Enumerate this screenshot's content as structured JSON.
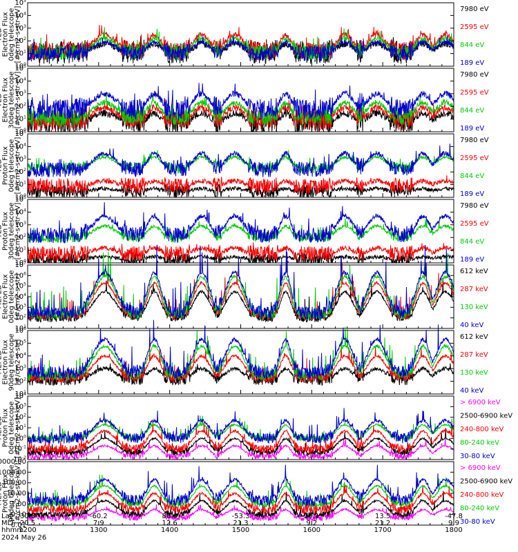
{
  "chart_data": [
    {
      "type": "line",
      "ylabel": [
        "TED",
        "Electron Flux",
        "0deg telescope",
        "[#/cm2-s-str-eV]"
      ],
      "yscale": "log",
      "ylim_exp": [
        0,
        5
      ],
      "yticks": [
        "10^0",
        "10^1",
        "10^2",
        "10^3",
        "10^4",
        "10^5"
      ],
      "series": [
        {
          "name": "7980 eV",
          "color": "#000000",
          "base": 12,
          "peak": 60,
          "noise": 0.9
        },
        {
          "name": "2595 eV",
          "color": "#ff0000",
          "base": 15,
          "peak": 300,
          "noise": 0.7
        },
        {
          "name": "844 eV",
          "color": "#00cc00",
          "base": 12,
          "peak": 150,
          "noise": 0.6
        },
        {
          "name": "189 eV",
          "color": "#0000cc",
          "base": 10,
          "peak": 80,
          "noise": 0.6
        }
      ]
    },
    {
      "type": "line",
      "ylabel": [
        "TED",
        "Electron Flux",
        "30deg telescope",
        "[#/cm2-s-str-eV]"
      ],
      "yscale": "log",
      "ylim_exp": [
        0,
        5
      ],
      "yticks": [
        "10^0",
        "10^1",
        "10^2",
        "10^3",
        "10^4",
        "10^5"
      ],
      "series": [
        {
          "name": "7980 eV",
          "color": "#000000",
          "base": 5,
          "peak": 30,
          "noise": 0.9
        },
        {
          "name": "2595 eV",
          "color": "#ff0000",
          "base": 8,
          "peak": 80,
          "noise": 0.8
        },
        {
          "name": "844 eV",
          "color": "#00cc00",
          "base": 15,
          "peak": 200,
          "noise": 0.7
        },
        {
          "name": "189 eV",
          "color": "#0000cc",
          "base": 60,
          "peak": 1000,
          "noise": 0.8
        }
      ]
    },
    {
      "type": "line",
      "ylabel": [
        "TED",
        "Proton Flux",
        "0deg telescope",
        "[#/cm2-s-str-eV]"
      ],
      "yscale": "log",
      "ylim_exp": [
        0,
        5
      ],
      "yticks": [
        "10^0",
        "10^1",
        "10^2",
        "10^3",
        "10^4",
        "10^5"
      ],
      "series": [
        {
          "name": "7980 eV",
          "color": "#000000",
          "base": 3,
          "peak": 5,
          "noise": 0.5
        },
        {
          "name": "2595 eV",
          "color": "#ff0000",
          "base": 8,
          "peak": 20,
          "noise": 0.6
        },
        {
          "name": "844 eV",
          "color": "#00cc00",
          "base": 200,
          "peak": 1500,
          "noise": 0.4
        },
        {
          "name": "189 eV",
          "color": "#0000cc",
          "base": 150,
          "peak": 3000,
          "noise": 0.6
        }
      ]
    },
    {
      "type": "line",
      "ylabel": [
        "TED",
        "Proton Flux",
        "30deg telescope",
        "[#/cm2-s-str-eV]"
      ],
      "yscale": "log",
      "ylim_exp": [
        0,
        5
      ],
      "yticks": [
        "10^0",
        "10^1",
        "10^2",
        "10^3",
        "10^4",
        "10^5"
      ],
      "series": [
        {
          "name": "7980 eV",
          "color": "#000000",
          "base": 2,
          "peak": 3,
          "noise": 0.5
        },
        {
          "name": "2595 eV",
          "color": "#ff0000",
          "base": 5,
          "peak": 15,
          "noise": 0.6
        },
        {
          "name": "844 eV",
          "color": "#00cc00",
          "base": 100,
          "peak": 800,
          "noise": 0.4
        },
        {
          "name": "189 eV",
          "color": "#0000cc",
          "base": 150,
          "peak": 5000,
          "noise": 0.6
        }
      ]
    },
    {
      "type": "line",
      "ylabel": [
        "MEPED",
        "Electron Flux",
        "0deg telescope",
        "[#/cm2-s-str]"
      ],
      "yscale": "log",
      "ylim_exp": [
        1,
        7
      ],
      "yticks": [
        "10^1",
        "10^2",
        "10^3",
        "10^4",
        "10^5",
        "10^6",
        "10^7"
      ],
      "series": [
        {
          "name": "612 keV",
          "color": "#000000",
          "base": 100,
          "peak": 30000,
          "noise": 0.4
        },
        {
          "name": "287 keV",
          "color": "#ff0000",
          "base": 150,
          "peak": 200000,
          "noise": 0.4
        },
        {
          "name": "130 keV",
          "color": "#00cc00",
          "base": 200,
          "peak": 800000,
          "noise": 0.5
        },
        {
          "name": "40 keV",
          "color": "#0000cc",
          "base": 300,
          "peak": 2000000,
          "noise": 0.6
        }
      ]
    },
    {
      "type": "line",
      "ylabel": [
        "MEPED",
        "Electron Flux",
        "90deg telescope",
        "[#/cm2-s-str]"
      ],
      "yscale": "log",
      "ylim_exp": [
        1,
        6
      ],
      "yticks": [
        "10^1",
        "10^2",
        "10^3",
        "10^4",
        "10^5",
        "10^6"
      ],
      "series": [
        {
          "name": "612 keV",
          "color": "#000000",
          "base": 150,
          "peak": 1000,
          "noise": 0.5
        },
        {
          "name": "287 keV",
          "color": "#ff0000",
          "base": 200,
          "peak": 10000,
          "noise": 0.4
        },
        {
          "name": "130 keV",
          "color": "#00cc00",
          "base": 300,
          "peak": 60000,
          "noise": 0.4
        },
        {
          "name": "40 keV",
          "color": "#0000cc",
          "base": 500,
          "peak": 200000,
          "noise": 0.5
        }
      ]
    },
    {
      "type": "line",
      "ylabel": [
        "MEPED",
        "Proton Flux",
        "0deg telescope",
        "[#/cm2-s-str-keV]"
      ],
      "yscale": "log",
      "ylim_exp": [
        -2,
        4
      ],
      "yticks": [
        "10^-2",
        "10^-1",
        "10^0",
        "10^1",
        "10^2",
        "10^3",
        "10^4"
      ],
      "series": [
        {
          "name": "> 6900 keV",
          "color": "#ff00ff",
          "base": 0.02,
          "peak": 0.2,
          "noise": 0.3
        },
        {
          "name": "2500-6900 keV",
          "color": "#000000",
          "base": 0.05,
          "peak": 1,
          "noise": 0.3
        },
        {
          "name": "240-800 keV",
          "color": "#ff0000",
          "base": 0.1,
          "peak": 5,
          "noise": 0.4
        },
        {
          "name": "80-240 keV",
          "color": "#00cc00",
          "base": 1,
          "peak": 20,
          "noise": 0.3
        },
        {
          "name": "30-80 keV",
          "color": "#0000cc",
          "base": 1,
          "peak": 50,
          "noise": 0.5
        }
      ]
    },
    {
      "type": "line",
      "ylabel": [
        "MEPED",
        "Proton Flux",
        "90deg telescope",
        "[#/cm2-s-str-keV]"
      ],
      "yscale": "log",
      "ylim_exp": [
        -2,
        4
      ],
      "yticks": [
        "0.01",
        "0.10",
        "1.00",
        "10.00",
        "100.00",
        "1000.00",
        "10000.00"
      ],
      "series": [
        {
          "name": "> 6900 keV",
          "color": "#ff00ff",
          "base": 0.05,
          "peak": 0.3,
          "noise": 0.3
        },
        {
          "name": "2500-6900 keV",
          "color": "#000000",
          "base": 0.1,
          "peak": 2,
          "noise": 0.3
        },
        {
          "name": "240-800 keV",
          "color": "#ff0000",
          "base": 0.3,
          "peak": 10,
          "noise": 0.4
        },
        {
          "name": "80-240 keV",
          "color": "#00cc00",
          "base": 1,
          "peak": 50,
          "noise": 0.3
        },
        {
          "name": "30-80 keV",
          "color": "#0000cc",
          "base": 2,
          "peak": 200,
          "noise": 0.5
        }
      ]
    }
  ],
  "x_axis": {
    "time_labels": [
      "1200",
      "1300",
      "1400",
      "1500",
      "1600",
      "1700",
      "1800"
    ],
    "lat": [
      "30.5",
      "-60.2",
      "80.6",
      "-53.3",
      "20.1",
      "13.5",
      "-47.8"
    ],
    "mlt": [
      "20.5",
      "7.9",
      "12.6",
      "21.3",
      "9.2",
      "21.2",
      "9.9"
    ],
    "row_labels": [
      "Lat",
      "MLT",
      "hhmm"
    ],
    "date": "2024 May 26",
    "xlim_hhmm": [
      "1200",
      "1800"
    ],
    "events_hhmm": [
      "1305",
      "1347",
      "1427",
      "1455",
      "1538",
      "1628",
      "1655",
      "1734",
      "1753"
    ]
  }
}
